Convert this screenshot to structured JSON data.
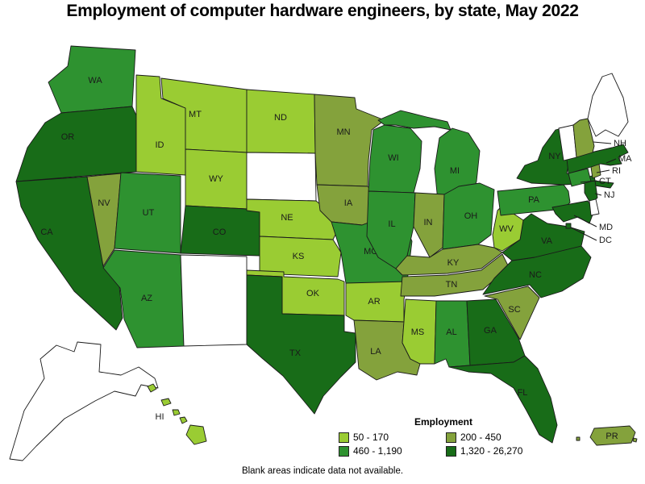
{
  "title": "Employment of computer hardware engineers, by state, May 2022",
  "footnote": "Blank areas indicate data not available.",
  "legend": {
    "title": "Employment",
    "classes": [
      {
        "label": "50 - 170",
        "color": "#9ACC33"
      },
      {
        "label": "200 - 450",
        "color": "#84A23C"
      },
      {
        "label": "460 - 1,190",
        "color": "#2E9230"
      },
      {
        "label": "1,320 - 26,270",
        "color": "#186C18"
      }
    ],
    "no_data_fill": "#FFFFFF"
  },
  "map": {
    "outline_color": "#1a1a1a",
    "states": [
      {
        "abbr": "WA",
        "range": "460 - 1,190"
      },
      {
        "abbr": "OR",
        "range": "1,320 - 26,270"
      },
      {
        "abbr": "CA",
        "range": "1,320 - 26,270"
      },
      {
        "abbr": "ID",
        "range": "50 - 170"
      },
      {
        "abbr": "NV",
        "range": "200 - 450"
      },
      {
        "abbr": "UT",
        "range": "460 - 1,190"
      },
      {
        "abbr": "AZ",
        "range": "460 - 1,190"
      },
      {
        "abbr": "MT",
        "range": "50 - 170"
      },
      {
        "abbr": "WY",
        "range": "50 - 170"
      },
      {
        "abbr": "CO",
        "range": "1,320 - 26,270"
      },
      {
        "abbr": "NM",
        "range": "no data"
      },
      {
        "abbr": "ND",
        "range": "50 - 170"
      },
      {
        "abbr": "SD",
        "range": "no data"
      },
      {
        "abbr": "NE",
        "range": "50 - 170"
      },
      {
        "abbr": "KS",
        "range": "50 - 170"
      },
      {
        "abbr": "OK",
        "range": "50 - 170"
      },
      {
        "abbr": "TX",
        "range": "1,320 - 26,270"
      },
      {
        "abbr": "MN",
        "range": "200 - 450"
      },
      {
        "abbr": "IA",
        "range": "200 - 450"
      },
      {
        "abbr": "MO",
        "range": "460 - 1,190"
      },
      {
        "abbr": "AR",
        "range": "50 - 170"
      },
      {
        "abbr": "LA",
        "range": "200 - 450"
      },
      {
        "abbr": "WI",
        "range": "460 - 1,190"
      },
      {
        "abbr": "MI",
        "range": "460 - 1,190"
      },
      {
        "abbr": "IL",
        "range": "460 - 1,190"
      },
      {
        "abbr": "IN",
        "range": "200 - 450"
      },
      {
        "abbr": "OH",
        "range": "460 - 1,190"
      },
      {
        "abbr": "KY",
        "range": "200 - 450"
      },
      {
        "abbr": "TN",
        "range": "200 - 450"
      },
      {
        "abbr": "MS",
        "range": "50 - 170"
      },
      {
        "abbr": "AL",
        "range": "460 - 1,190"
      },
      {
        "abbr": "GA",
        "range": "1,320 - 26,270"
      },
      {
        "abbr": "FL",
        "range": "1,320 - 26,270"
      },
      {
        "abbr": "SC",
        "range": "200 - 450"
      },
      {
        "abbr": "NC",
        "range": "1,320 - 26,270"
      },
      {
        "abbr": "VA",
        "range": "1,320 - 26,270"
      },
      {
        "abbr": "WV",
        "range": "50 - 170"
      },
      {
        "abbr": "PA",
        "range": "460 - 1,190"
      },
      {
        "abbr": "NY",
        "range": "1,320 - 26,270"
      },
      {
        "abbr": "NJ",
        "range": "1,320 - 26,270"
      },
      {
        "abbr": "MD",
        "range": "1,320 - 26,270"
      },
      {
        "abbr": "DE",
        "range": "no data"
      },
      {
        "abbr": "DC",
        "range": "1,320 - 26,270"
      },
      {
        "abbr": "CT",
        "range": "460 - 1,190"
      },
      {
        "abbr": "RI",
        "range": "200 - 450"
      },
      {
        "abbr": "MA",
        "range": "1,320 - 26,270"
      },
      {
        "abbr": "VT",
        "range": "no data"
      },
      {
        "abbr": "NH",
        "range": "200 - 450"
      },
      {
        "abbr": "ME",
        "range": "no data"
      },
      {
        "abbr": "AK",
        "range": "no data"
      },
      {
        "abbr": "HI",
        "range": "50 - 170"
      },
      {
        "abbr": "PR",
        "range": "200 - 450"
      }
    ],
    "unlabeled_states": [
      "AK",
      "SD",
      "NM",
      "ME",
      "VT",
      "DE"
    ],
    "callout_labels": [
      "NH",
      "MA",
      "RI",
      "CT",
      "NJ",
      "MD",
      "DC"
    ]
  }
}
